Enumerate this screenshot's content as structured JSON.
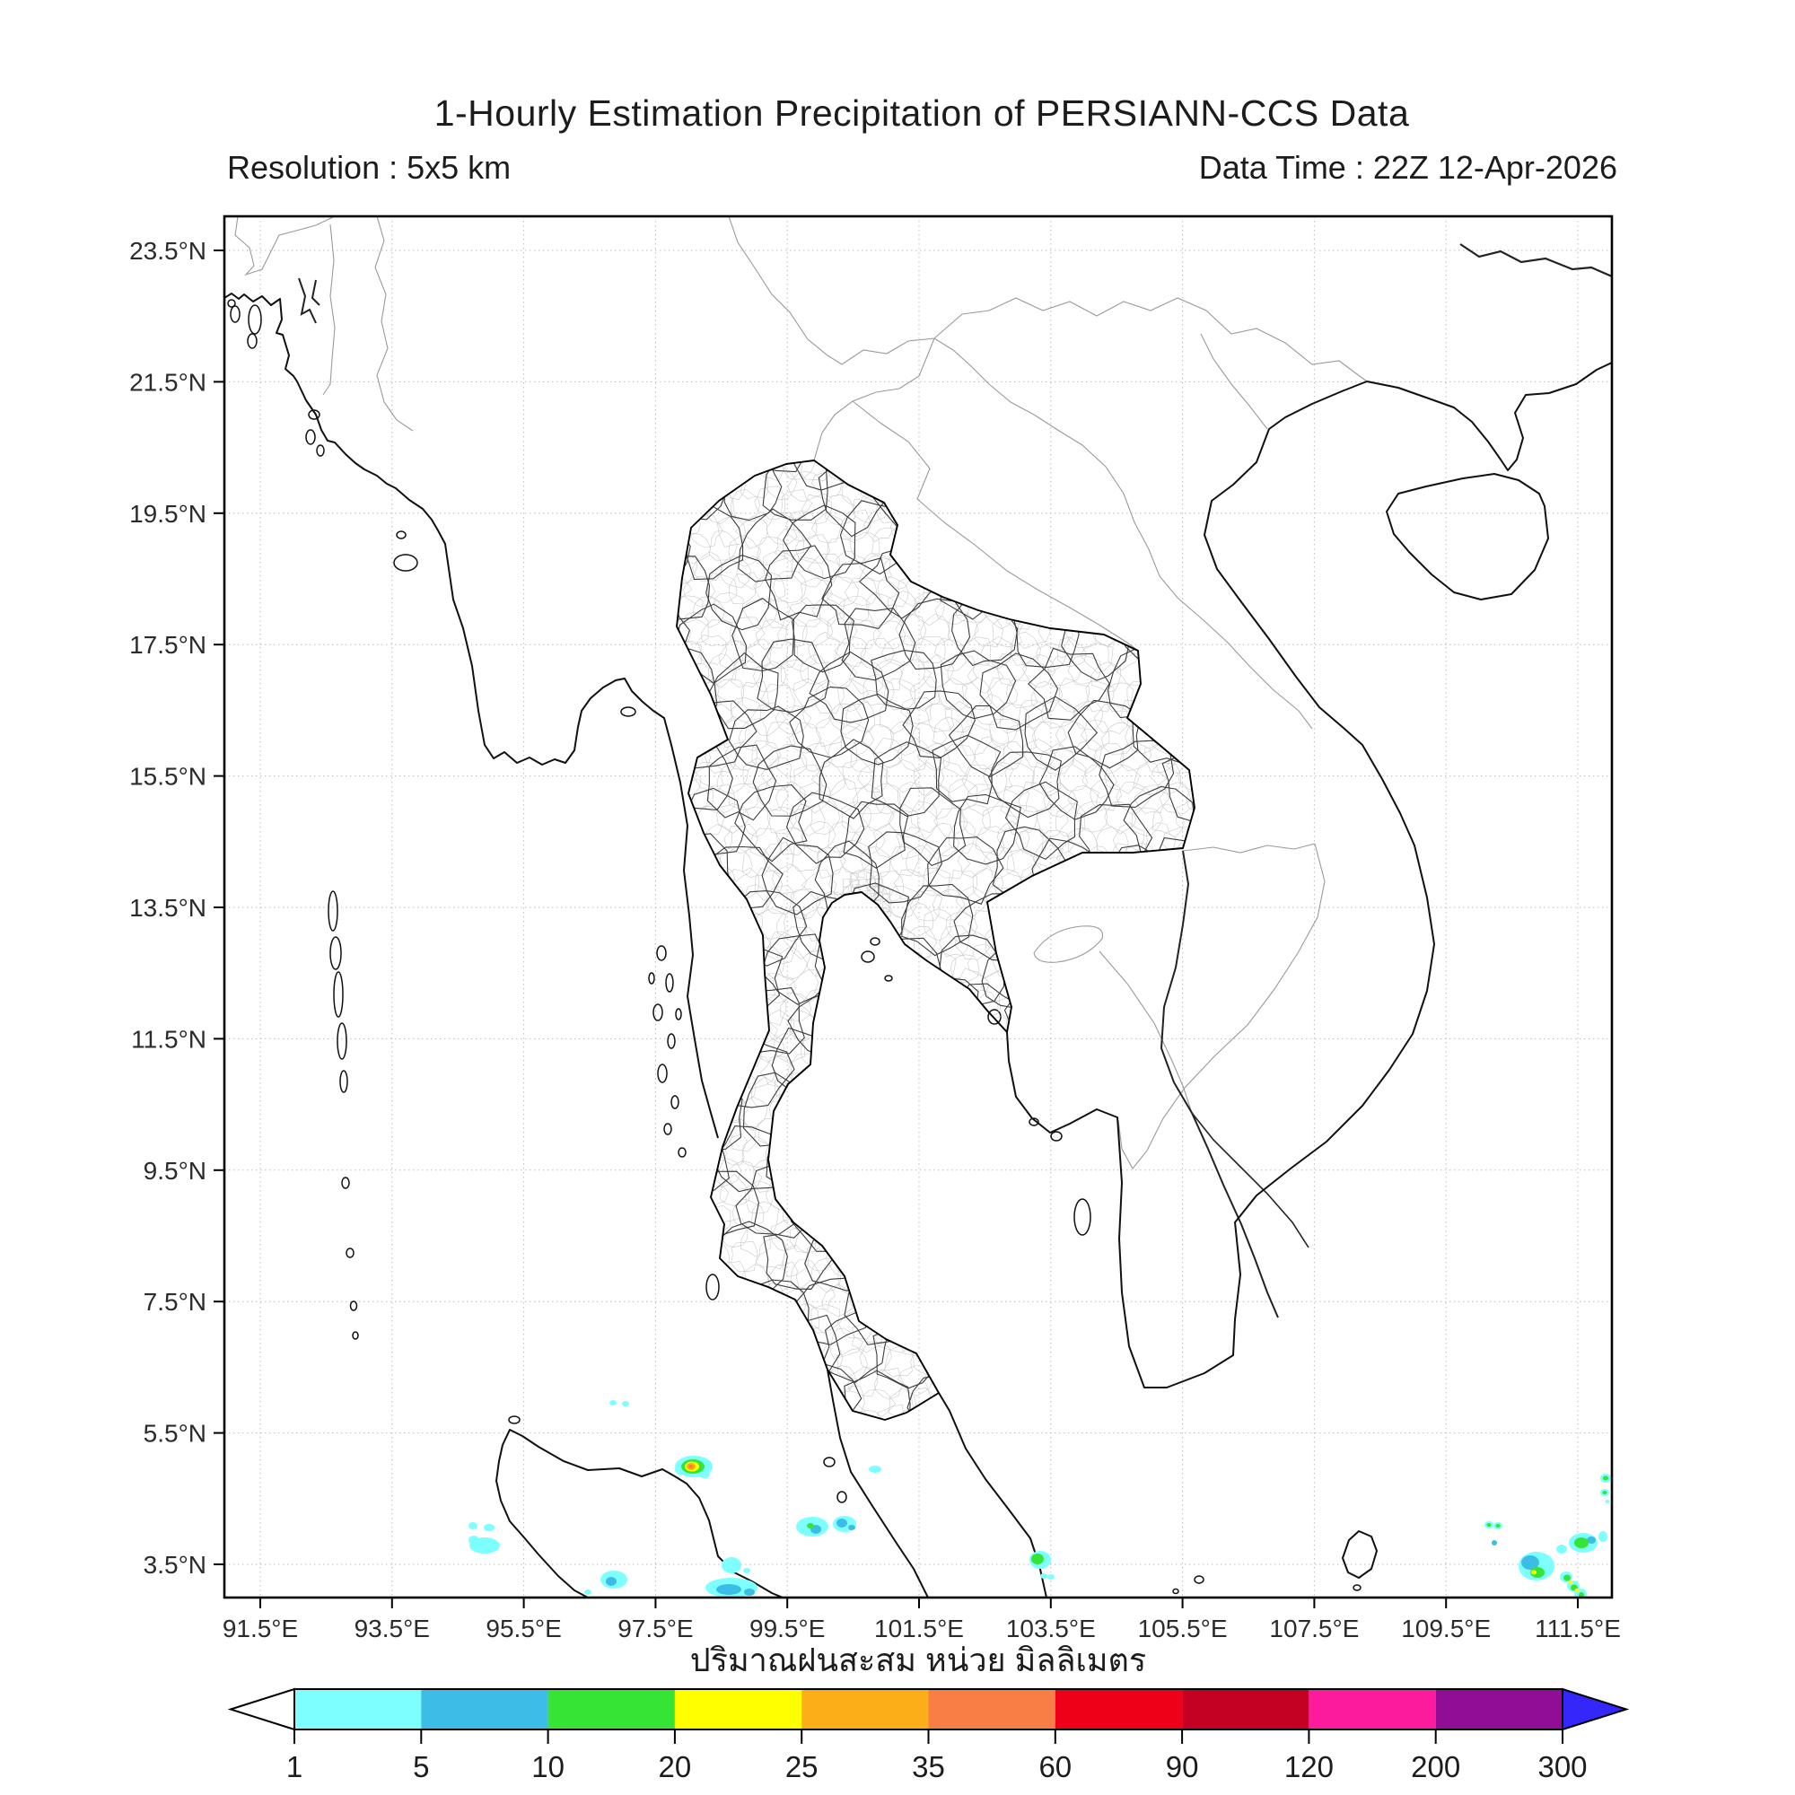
{
  "header": {
    "title": "1-Hourly Estimation Precipitation of PERSIANN-CCS Data",
    "resolution": "Resolution : 5x5 km",
    "data_time": "Data Time : 22Z 12-Apr-2026"
  },
  "map": {
    "x_tick_labels": [
      "91.5°E",
      "93.5°E",
      "95.5°E",
      "97.5°E",
      "99.5°E",
      "101.5°E",
      "103.5°E",
      "105.5°E",
      "107.5°E",
      "109.5°E",
      "111.5°E"
    ],
    "y_tick_labels": [
      "23.5°N",
      "21.5°N",
      "19.5°N",
      "17.5°N",
      "15.5°N",
      "13.5°N",
      "11.5°N",
      "9.5°N",
      "7.5°N",
      "5.5°N",
      "3.5°N"
    ],
    "caption_thai": "ปริมาณฝนสะสม หน่วย มิลลิเมตร"
  },
  "colorbar": {
    "tick_labels": [
      "1",
      "5",
      "10",
      "20",
      "25",
      "35",
      "60",
      "90",
      "120",
      "200",
      "300"
    ],
    "segment_colors": [
      "#7dffff",
      "#3cbde8",
      "#35e435",
      "#ffff00",
      "#fbae17",
      "#f87e45",
      "#ef0019",
      "#c40023",
      "#fb1b9c",
      "#920d96"
    ],
    "under_color": "#ffffff",
    "over_color": "#3526f9",
    "outline_color": "#000000"
  },
  "intensity_colors": {
    "1": "#7dffff",
    "2": "#3cbde8",
    "3": "#35e435",
    "4": "#ffff00",
    "5": "#fbae17",
    "6": "#f87e45"
  },
  "precipitation_cells": [
    [
      683,
      1563,
      4,
      3,
      1
    ],
    [
      697,
      1564,
      4,
      3,
      1
    ],
    [
      773,
      1634,
      21,
      12,
      1
    ],
    [
      759,
      1638,
      7,
      5,
      1
    ],
    [
      785,
      1643,
      6,
      4,
      1
    ],
    [
      772,
      1634,
      13,
      8,
      3
    ],
    [
      771,
      1634,
      8,
      5.5,
      4
    ],
    [
      770,
      1634,
      5,
      4,
      5
    ],
    [
      770,
      1634,
      2.5,
      2,
      6
    ],
    [
      527,
      1700,
      5,
      4,
      1
    ],
    [
      545,
      1702,
      6,
      4,
      1
    ],
    [
      540,
      1722,
      17,
      9,
      1
    ],
    [
      528,
      1716,
      6,
      5,
      1
    ],
    [
      815,
      1744,
      11,
      9,
      1
    ],
    [
      832,
      1750,
      4,
      3,
      1
    ],
    [
      905,
      1701,
      18,
      11,
      1
    ],
    [
      909,
      1704,
      6,
      5,
      2
    ],
    [
      903,
      1700,
      4,
      3,
      3
    ],
    [
      941,
      1698,
      13,
      9,
      1
    ],
    [
      938,
      1697,
      6,
      5,
      2
    ],
    [
      949,
      1702,
      4,
      3,
      2
    ],
    [
      975,
      1637,
      7,
      4,
      1
    ],
    [
      684,
      1760,
      15,
      10,
      1
    ],
    [
      681,
      1762,
      6,
      5,
      2
    ],
    [
      655,
      1774,
      4,
      3,
      1
    ],
    [
      815,
      1769,
      29,
      11,
      1
    ],
    [
      812,
      1771,
      14,
      6,
      2
    ],
    [
      835,
      1774,
      6,
      4,
      2
    ],
    [
      1159,
      1738,
      12,
      10,
      1
    ],
    [
      1156,
      1737,
      7,
      6,
      3
    ],
    [
      1163,
      1756,
      4,
      3,
      1
    ],
    [
      1171,
      1757,
      4,
      3,
      1
    ],
    [
      1659,
      1699,
      5,
      4,
      1
    ],
    [
      1669,
      1700,
      5,
      4,
      1
    ],
    [
      1659,
      1699,
      2.5,
      2,
      3
    ],
    [
      1669,
      1700,
      2.5,
      2,
      3
    ],
    [
      1665,
      1719,
      3,
      3,
      2
    ],
    [
      1712,
      1745,
      20,
      16,
      1
    ],
    [
      1705,
      1741,
      10,
      8,
      2
    ],
    [
      1713,
      1752,
      8,
      6,
      3
    ],
    [
      1709,
      1752,
      3,
      2.5,
      4
    ],
    [
      1740,
      1726,
      6,
      5,
      1
    ],
    [
      1764,
      1719,
      16,
      11,
      1
    ],
    [
      1773,
      1716,
      5,
      4,
      2
    ],
    [
      1762,
      1719,
      8,
      6,
      3
    ],
    [
      1786,
      1712,
      5,
      6,
      1
    ],
    [
      1745,
      1757,
      7,
      6,
      1
    ],
    [
      1753,
      1767,
      7,
      6,
      1
    ],
    [
      1761,
      1776,
      7,
      6,
      1
    ],
    [
      1746,
      1758,
      4,
      3.5,
      3
    ],
    [
      1754,
      1769,
      4,
      3.5,
      3
    ],
    [
      1762,
      1777,
      3,
      3,
      3
    ],
    [
      1750,
      1763,
      2.5,
      2,
      4
    ],
    [
      1757,
      1772,
      2.5,
      2,
      4
    ],
    [
      1789,
      1647,
      6,
      5,
      1
    ],
    [
      1789,
      1647,
      3,
      2.5,
      3
    ],
    [
      1788,
      1663,
      5,
      4,
      1
    ],
    [
      1788,
      1663,
      2.5,
      2,
      3
    ],
    [
      1791,
      1673,
      2.5,
      2,
      1
    ]
  ]
}
